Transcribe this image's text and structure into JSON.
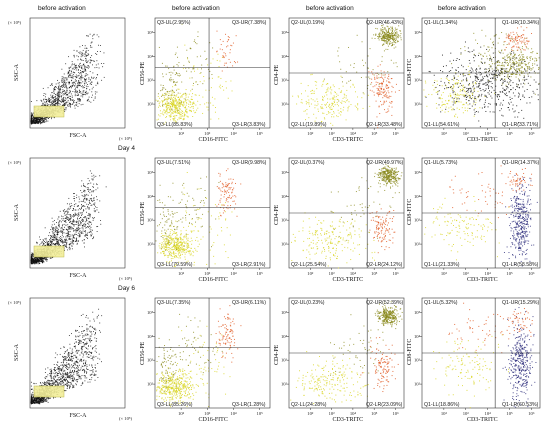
{
  "titles": [
    "before activation",
    "before activation",
    "before activation",
    "before activation"
  ],
  "days": [
    "Day 4",
    "Day 6"
  ],
  "scatter_axes": {
    "xlabel": "FSC-A",
    "ylabel": "SSC-A",
    "x_mult": "(× 10⁵)",
    "y_mult": "(× 10⁵)"
  },
  "chart_data": [
    {
      "type": "scatter",
      "row": 0,
      "col": 0,
      "panel": "fsc-ssc",
      "xlabel": "FSC-A",
      "ylabel": "SSC-A",
      "quadrants": []
    },
    {
      "type": "scatter",
      "row": 0,
      "col": 1,
      "panel": "flow",
      "xlabel": "CD16-FITC",
      "ylabel": "CD56-PE",
      "quadrants": [
        "Q3-UL(2.95%)",
        "Q3-UR(7.38%)",
        "Q3-LL(85.83%)",
        "Q3-LR(3.83%)"
      ],
      "percent": [
        2.95,
        7.38,
        85.83,
        3.83
      ],
      "xticks": [
        "10²",
        "10³",
        "10⁴",
        "10⁵"
      ],
      "yticks": [
        "10²",
        "10³",
        "10⁴",
        "10⁵"
      ]
    },
    {
      "type": "scatter",
      "row": 0,
      "col": 2,
      "panel": "flow",
      "xlabel": "CD3-TRITC",
      "ylabel": "CD4-PE",
      "quadrants": [
        "Q2-UL(0.19%)",
        "Q2-UR(46.43%)",
        "Q2-LL(19.89%)",
        "Q2-LR(33.48%)"
      ],
      "percent": [
        0.19,
        46.43,
        19.89,
        33.48
      ],
      "xticks": [
        "10²",
        "10³",
        "10⁴",
        "10⁵",
        "10⁶"
      ],
      "yticks": [
        "10²",
        "10³",
        "10⁴",
        "10⁵"
      ]
    },
    {
      "type": "scatter",
      "row": 0,
      "col": 3,
      "panel": "flow",
      "xlabel": "CD3-TRITC",
      "ylabel": "CD8-FITC",
      "quadrants": [
        "Q1-UL(1.34%)",
        "Q1-UR(10.34%)",
        "Q1-LL(54.61%)",
        "Q1-LR(33.71%)"
      ],
      "percent": [
        1.34,
        10.34,
        54.61,
        33.71
      ],
      "xticks": [
        "10²",
        "10³",
        "10⁴",
        "10⁵",
        "10⁶"
      ],
      "yticks": [
        "10²",
        "10³",
        "10⁴",
        "10⁵"
      ]
    },
    {
      "type": "scatter",
      "row": 1,
      "col": 0,
      "panel": "fsc-ssc",
      "xlabel": "FSC-A",
      "ylabel": "SSC-A",
      "quadrants": []
    },
    {
      "type": "scatter",
      "row": 1,
      "col": 1,
      "panel": "flow",
      "xlabel": "CD16-FITC",
      "ylabel": "CD56-PE",
      "quadrants": [
        "Q3-UL(7.51%)",
        "Q3-UR(9.98%)",
        "Q3-LL(79.59%)",
        "Q3-LR(2.91%)"
      ],
      "percent": [
        7.51,
        9.98,
        79.59,
        2.91
      ],
      "xticks": [
        "10²",
        "10³",
        "10⁴",
        "10⁵"
      ],
      "yticks": [
        "10²",
        "10³",
        "10⁴",
        "10⁵"
      ]
    },
    {
      "type": "scatter",
      "row": 1,
      "col": 2,
      "panel": "flow",
      "xlabel": "CD3-TRITC",
      "ylabel": "CD4-PE",
      "quadrants": [
        "Q2-UL(0.37%)",
        "Q2-UR(49.97%)",
        "Q2-LL(25.54%)",
        "Q2-LR(24.12%)"
      ],
      "percent": [
        0.37,
        49.97,
        25.54,
        24.12
      ],
      "xticks": [
        "10²",
        "10³",
        "10⁴",
        "10⁵",
        "10⁶"
      ],
      "yticks": [
        "10²",
        "10³",
        "10⁴",
        "10⁵"
      ]
    },
    {
      "type": "scatter",
      "row": 1,
      "col": 3,
      "panel": "flow",
      "xlabel": "CD3-TRITC",
      "ylabel": "CD8-FITC",
      "quadrants": [
        "Q1-UL(5.73%)",
        "Q1-UR(14.37%)",
        "Q1-LL(21.33%)",
        "Q1-LR(58.58%)"
      ],
      "percent": [
        5.73,
        14.37,
        21.33,
        58.58
      ],
      "xticks": [
        "10²",
        "10³",
        "10⁴",
        "10⁵",
        "10⁶"
      ],
      "yticks": [
        "10²",
        "10³",
        "10⁴",
        "10⁵"
      ]
    },
    {
      "type": "scatter",
      "row": 2,
      "col": 0,
      "panel": "fsc-ssc",
      "xlabel": "FSC-A",
      "ylabel": "SSC-A",
      "quadrants": []
    },
    {
      "type": "scatter",
      "row": 2,
      "col": 1,
      "panel": "flow",
      "xlabel": "CD16-FITC",
      "ylabel": "CD56-PE",
      "quadrants": [
        "Q3-UL(7.35%)",
        "Q3-UR(6.11%)",
        "Q3-LL(85.26%)",
        "Q3-LR(1.28%)"
      ],
      "percent": [
        7.35,
        6.11,
        85.26,
        1.28
      ],
      "xticks": [
        "10²",
        "10³",
        "10⁴",
        "10⁵"
      ],
      "yticks": [
        "10²",
        "10³",
        "10⁴",
        "10⁵"
      ]
    },
    {
      "type": "scatter",
      "row": 2,
      "col": 2,
      "panel": "flow",
      "xlabel": "CD3-TRITC",
      "ylabel": "CD4-PE",
      "quadrants": [
        "Q2-UL(0.23%)",
        "Q2-UR(52.39%)",
        "Q2-LL(24.28%)",
        "Q2-LR(23.09%)"
      ],
      "percent": [
        0.23,
        52.39,
        24.28,
        23.09
      ],
      "xticks": [
        "10²",
        "10³",
        "10⁴",
        "10⁵",
        "10⁶"
      ],
      "yticks": [
        "10²",
        "10³",
        "10⁴",
        "10⁵"
      ]
    },
    {
      "type": "scatter",
      "row": 2,
      "col": 3,
      "panel": "flow",
      "xlabel": "CD3-TRITC",
      "ylabel": "CD8-FITC",
      "quadrants": [
        "Q1-UL(5.32%)",
        "Q1-UR(15.29%)",
        "Q1-LL(18.86%)",
        "Q1-LR(60.53%)"
      ],
      "percent": [
        5.32,
        15.29,
        18.86,
        60.53
      ],
      "xticks": [
        "10²",
        "10³",
        "10⁴",
        "10⁵",
        "10⁶"
      ],
      "yticks": [
        "10²",
        "10³",
        "10⁴",
        "10⁵"
      ]
    }
  ],
  "colors": {
    "yellow": "#d8d420",
    "olive": "#8a8a1e",
    "orange": "#e0561e",
    "navy": "#2a2a7a",
    "dark": "#111111",
    "gate": "#f2ee9a"
  }
}
